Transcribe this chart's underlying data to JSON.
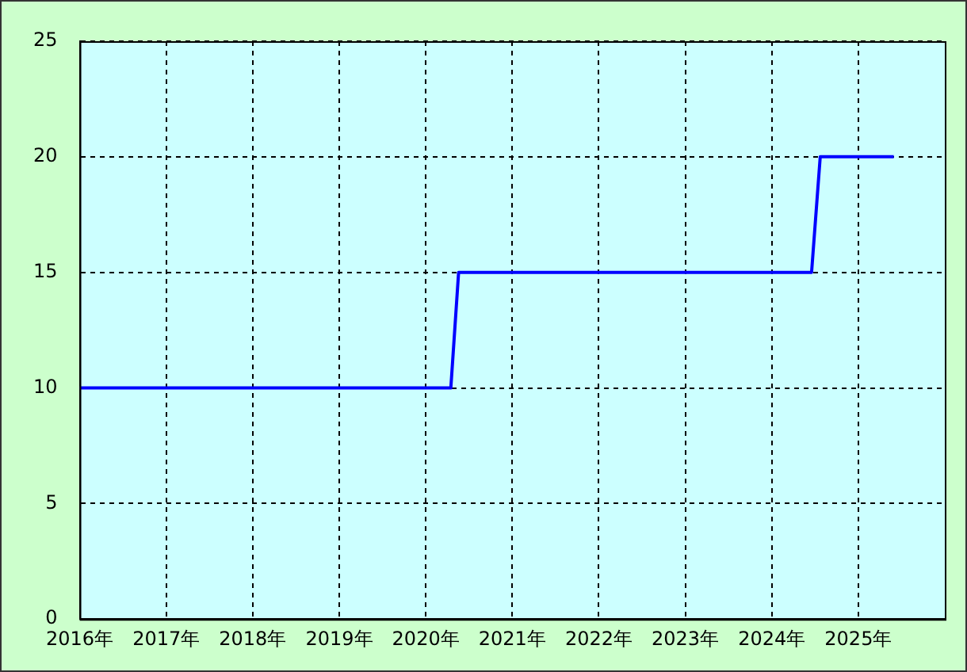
{
  "chart_data": {
    "type": "line",
    "x": [
      2016,
      2020.29,
      2020.38,
      2024.46,
      2024.56,
      2025.41
    ],
    "series": [
      {
        "color": "#0000ff",
        "values": [
          10,
          10,
          15,
          15,
          20,
          20
        ]
      }
    ],
    "xlim": [
      2016,
      2026
    ],
    "xticks": [
      {
        "value": 2016,
        "label": "2016年"
      },
      {
        "value": 2017,
        "label": "2017年"
      },
      {
        "value": 2018,
        "label": "2018年"
      },
      {
        "value": 2019,
        "label": "2019年"
      },
      {
        "value": 2020,
        "label": "2020年"
      },
      {
        "value": 2021,
        "label": "2021年"
      },
      {
        "value": 2022,
        "label": "2022年"
      },
      {
        "value": 2023,
        "label": "2023年"
      },
      {
        "value": 2024,
        "label": "2024年"
      },
      {
        "value": 2025,
        "label": "2025年"
      }
    ],
    "ylim": [
      0,
      25
    ],
    "yticks": [
      0,
      5,
      10,
      15,
      20,
      25
    ],
    "grid": true,
    "legend": false,
    "marker": "none",
    "line_style": "solid"
  }
}
